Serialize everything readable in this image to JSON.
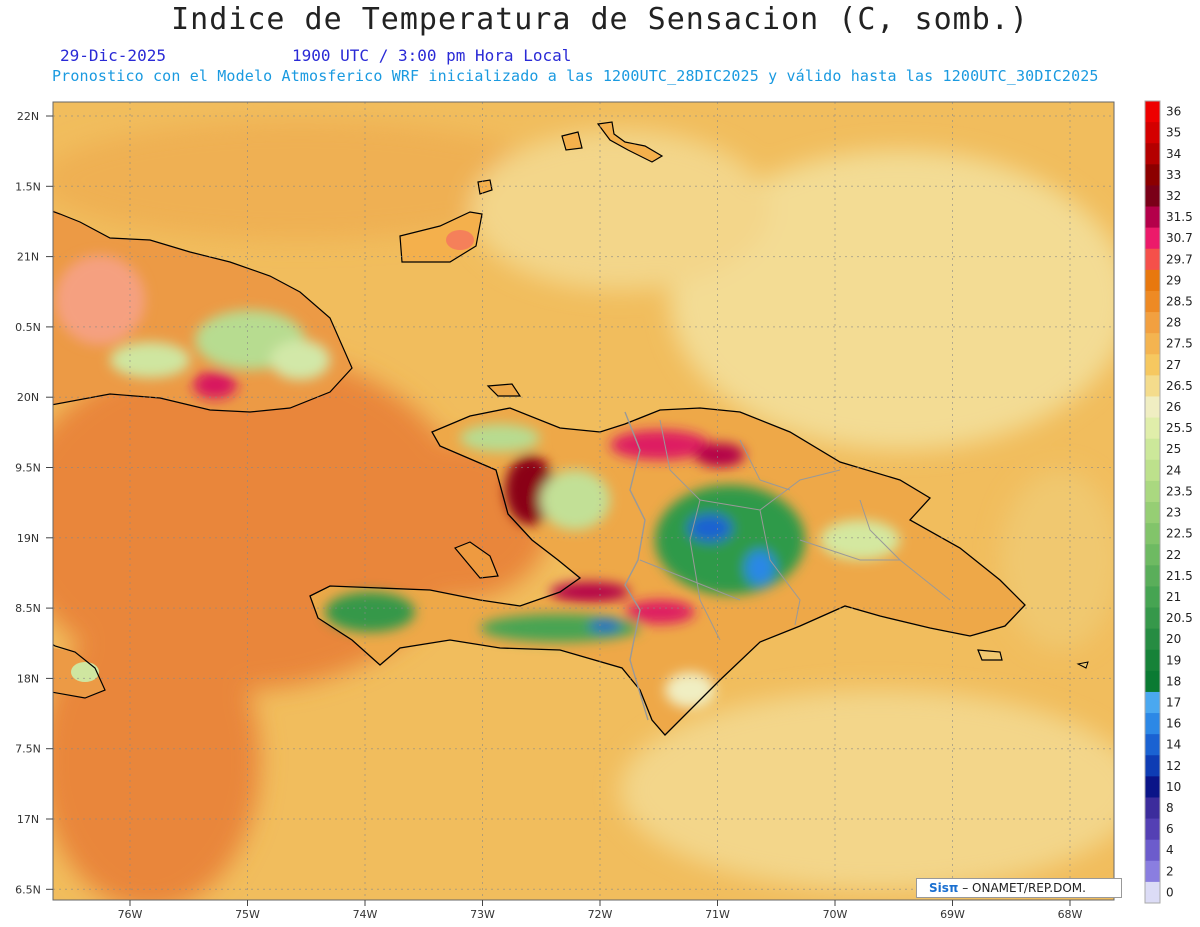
{
  "header": {
    "title": "Indice de Temperatura de Sensacion (C, somb.)",
    "date": "29-Dic-2025",
    "time": "1900 UTC / 3:00 pm Hora Local",
    "forecast": "Pronostico con el Modelo Atmosferico WRF inicializado a las 1200UTC_28DIC2025 y válido hasta las  1200UTC_30DIC2025"
  },
  "axes": {
    "lat_labels": [
      "22N",
      "1.5N",
      "21N",
      "0.5N",
      "20N",
      "9.5N",
      "19N",
      "8.5N",
      "18N",
      "7.5N",
      "17N",
      "6.5N"
    ],
    "lon_labels": [
      "76W",
      "75W",
      "74W",
      "73W",
      "72W",
      "71W",
      "70W",
      "69W",
      "68W"
    ]
  },
  "colorbar": {
    "levels": [
      "36",
      "35",
      "34",
      "33",
      "32",
      "31.5",
      "30.7",
      "29.7",
      "29",
      "28.5",
      "28",
      "27.5",
      "27",
      "26.5",
      "26",
      "25.5",
      "25",
      "24",
      "23.5",
      "23",
      "22.5",
      "22",
      "21.5",
      "21",
      "20.5",
      "20",
      "19",
      "18",
      "17",
      "16",
      "14",
      "12",
      "10",
      "8",
      "6",
      "4",
      "2",
      "0"
    ],
    "colors": [
      "#ee0000",
      "#d40000",
      "#b40000",
      "#8c0000",
      "#7a0018",
      "#b4004a",
      "#ec1a6a",
      "#f5504a",
      "#e8780e",
      "#ee8a24",
      "#f2a040",
      "#f4b450",
      "#f6c860",
      "#f4dc8c",
      "#f0eec2",
      "#e0eeaa",
      "#cce89a",
      "#bde18c",
      "#aad880",
      "#96ce74",
      "#82c46a",
      "#6eba62",
      "#5aae5a",
      "#46a452",
      "#36984a",
      "#268c42",
      "#168238",
      "#0a7a32",
      "#4aa8f0",
      "#2c88e6",
      "#1a62d2",
      "#0e3cb4",
      "#0a1488",
      "#3c2c9c",
      "#5440b4",
      "#6c5ccc",
      "#8a7ee0",
      "#dcdcf6"
    ]
  },
  "credit": {
    "brand": "Sisπ",
    "org": "– ONAMET/REP.DOM."
  },
  "colors": {
    "ocean_base": "#f1bd5d",
    "warm_ocean": "#e9863a",
    "pale": "#f3dc94",
    "coast": "#000000",
    "border": "#999999"
  }
}
